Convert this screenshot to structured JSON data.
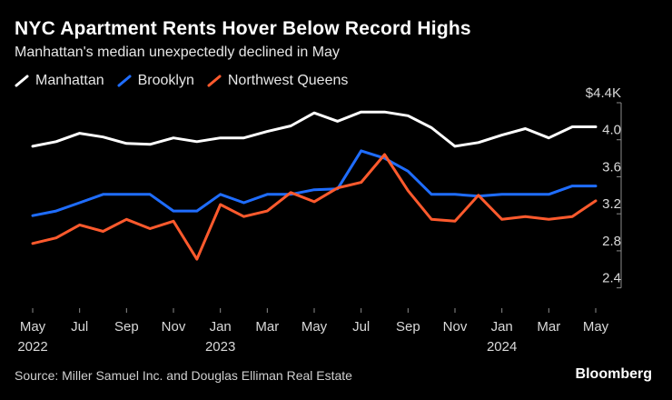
{
  "header": {
    "title": "NYC Apartment Rents Hover Below Record Highs",
    "subtitle": "Manhattan's median unexpectedly declined in May"
  },
  "footer": {
    "source": "Source: Miller Samuel Inc. and Douglas Elliman Real Estate",
    "brand": "Bloomberg"
  },
  "chart_data": {
    "type": "line",
    "title": "NYC Apartment Rents Hover Below Record Highs",
    "subtitle": "Manhattan's median unexpectedly declined in May",
    "x": [
      "2022-05",
      "2022-06",
      "2022-07",
      "2022-08",
      "2022-09",
      "2022-10",
      "2022-11",
      "2022-12",
      "2023-01",
      "2023-02",
      "2023-03",
      "2023-04",
      "2023-05",
      "2023-06",
      "2023-07",
      "2023-08",
      "2023-09",
      "2023-10",
      "2023-11",
      "2023-12",
      "2024-01",
      "2024-02",
      "2024-03",
      "2024-04",
      "2024-05"
    ],
    "x_ticks": [
      {
        "x": "2022-05",
        "label": "May",
        "year": "2022"
      },
      {
        "x": "2022-07",
        "label": "Jul",
        "year": ""
      },
      {
        "x": "2022-09",
        "label": "Sep",
        "year": ""
      },
      {
        "x": "2022-11",
        "label": "Nov",
        "year": ""
      },
      {
        "x": "2023-01",
        "label": "Jan",
        "year": "2023"
      },
      {
        "x": "2023-03",
        "label": "Mar",
        "year": ""
      },
      {
        "x": "2023-05",
        "label": "May",
        "year": ""
      },
      {
        "x": "2023-07",
        "label": "Jul",
        "year": ""
      },
      {
        "x": "2023-09",
        "label": "Sep",
        "year": ""
      },
      {
        "x": "2023-11",
        "label": "Nov",
        "year": ""
      },
      {
        "x": "2024-01",
        "label": "Jan",
        "year": "2024"
      },
      {
        "x": "2024-03",
        "label": "Mar",
        "year": ""
      },
      {
        "x": "2024-05",
        "label": "May",
        "year": ""
      }
    ],
    "y_ticks": [
      {
        "value": 4.4,
        "label": "$4.4K"
      },
      {
        "value": 4.0,
        "label": "4.0"
      },
      {
        "value": 3.6,
        "label": "3.6"
      },
      {
        "value": 3.2,
        "label": "3.2"
      },
      {
        "value": 2.8,
        "label": "2.8"
      },
      {
        "value": 2.4,
        "label": "2.4"
      }
    ],
    "ylim": [
      2.2,
      4.4
    ],
    "y_unit": "$K",
    "grid": false,
    "legend_position": "top-left",
    "series": [
      {
        "name": "Manhattan",
        "color": "#ffffff",
        "values": [
          3.93,
          3.98,
          4.07,
          4.03,
          3.96,
          3.95,
          4.02,
          3.98,
          4.02,
          4.02,
          4.09,
          4.15,
          4.29,
          4.2,
          4.3,
          4.3,
          4.26,
          4.13,
          3.93,
          3.97,
          4.05,
          4.12,
          4.02,
          4.14,
          4.14
        ]
      },
      {
        "name": "Brooklyn",
        "color": "#1f6dff",
        "values": [
          3.18,
          3.23,
          3.32,
          3.41,
          3.41,
          3.41,
          3.23,
          3.23,
          3.41,
          3.32,
          3.41,
          3.41,
          3.46,
          3.47,
          3.88,
          3.8,
          3.66,
          3.41,
          3.41,
          3.39,
          3.41,
          3.41,
          3.41,
          3.5,
          3.5
        ]
      },
      {
        "name": "Northwest Queens",
        "color": "#ff5a2d",
        "values": [
          2.88,
          2.94,
          3.08,
          3.01,
          3.14,
          3.04,
          3.12,
          2.71,
          3.3,
          3.17,
          3.23,
          3.43,
          3.33,
          3.48,
          3.54,
          3.84,
          3.45,
          3.14,
          3.12,
          3.4,
          3.14,
          3.17,
          3.14,
          3.17,
          3.34
        ]
      }
    ]
  }
}
